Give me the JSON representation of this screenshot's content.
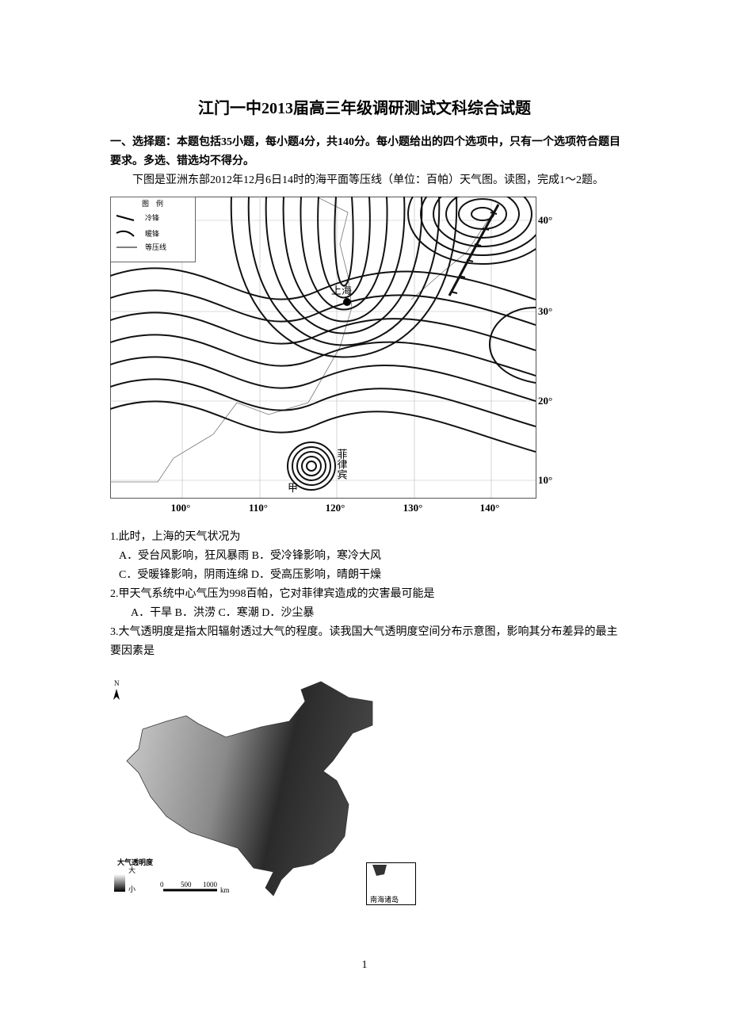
{
  "header": {
    "title": "江门一中2013届高三年级调研测试文科综合试题"
  },
  "section": "一、选择题：本题包括35小题，每小题4分，共140分。每小题给出的四个选项中，只有一个选项符合题目要求。多选、错选均不得分。",
  "intro": "下图是亚洲东部2012年12月6日14时的海平面等压线（单位：百帕）天气图。读图，完成1～2题。",
  "map1": {
    "legend_title": "图　例",
    "legend": [
      "冷锋",
      "暖锋",
      "等压线"
    ],
    "places": {
      "shanghai": "上海",
      "philippines": "菲律宾",
      "jia": "甲"
    },
    "lon": [
      "100°",
      "110°",
      "120°",
      "130°",
      "140°"
    ],
    "lat": [
      "40°",
      "30°",
      "20°",
      "10°"
    ]
  },
  "questions": [
    {
      "stem": "1.此时，上海的天气状况为",
      "options": [
        "A．受台风影响，狂风暴雨 B．受冷锋影响，寒冷大风",
        "C．受暖锋影响，阴雨连绵 D．受高压影响，晴朗干燥"
      ]
    },
    {
      "stem": "2.甲天气系统中心气压为998百帕，它对菲律宾造成的灾害最可能是",
      "options": [
        "A．干旱 B．洪涝 C．寒潮 D．沙尘暴"
      ]
    },
    {
      "stem": "3.大气透明度是指太阳辐射透过大气的程度。读我国大气透明度空间分布示意图，影响其分布差异的最主要因素是",
      "options": []
    }
  ],
  "map2": {
    "north": "N",
    "legend_title": "大气透明度",
    "high": "大",
    "low": "小",
    "scale": [
      "0",
      "500",
      "1000",
      "km"
    ],
    "inset": "南海诸岛"
  },
  "page_number": "1"
}
